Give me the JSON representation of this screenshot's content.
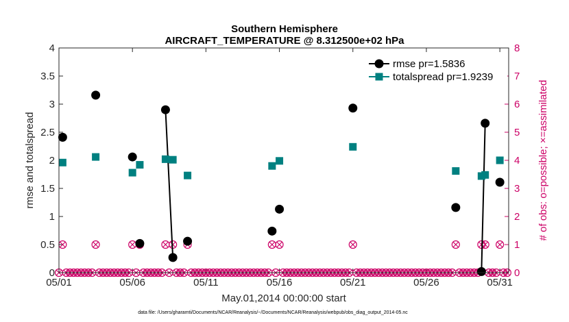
{
  "chart_data": {
    "type": "scatter",
    "title_line1": "Southern Hemisphere",
    "title_line2": "AIRCRAFT_TEMPERATURE @ 8.312500e+02 hPa",
    "xlabel": "May.01,2014 00:00:00 start",
    "ylabel_left": "rmse and totalspread",
    "ylabel_right": "# of obs: o=possible; ×=assimilated",
    "footer": "data file: /Users/gharamti/Documents/NCAR/Reanalysis/~/Documents/NCAR/Reanalysis/webpub/obs_diag_output_2014-05.nc",
    "xlim": [
      1,
      31.6
    ],
    "ylim_left": [
      0,
      4
    ],
    "ylim_right": [
      0,
      8
    ],
    "x_ticks": [
      1,
      6,
      11,
      16,
      21,
      26,
      31
    ],
    "x_tick_labels": [
      "05/01",
      "05/06",
      "05/11",
      "05/16",
      "05/21",
      "05/26",
      "05/31"
    ],
    "y_left_ticks": [
      0,
      0.5,
      1,
      1.5,
      2,
      2.5,
      3,
      3.5,
      4
    ],
    "y_left_tick_labels": [
      "0",
      "0.5",
      "1",
      "1.5",
      "2",
      "2.5",
      "3",
      "3.5",
      "4"
    ],
    "y_right_ticks": [
      0,
      1,
      2,
      3,
      4,
      5,
      6,
      7,
      8
    ],
    "y_right_tick_labels": [
      "0",
      "1",
      "2",
      "3",
      "4",
      "5",
      "6",
      "7",
      "8"
    ],
    "legend_position": "top-right",
    "colors": {
      "rmse": "#000000",
      "totalspread": "#008080",
      "obs": "#cc0066"
    },
    "series": [
      {
        "name": "rmse pr=1.5836",
        "marker": "circle",
        "x": [
          1.25,
          3.5,
          6.0,
          6.5,
          8.25,
          8.75,
          9.75,
          15.5,
          16.0,
          21.0,
          28.0,
          29.75,
          30.0,
          31.0
        ],
        "y": [
          2.41,
          3.16,
          2.06,
          0.52,
          2.9,
          0.27,
          0.56,
          0.74,
          1.13,
          2.93,
          1.16,
          0.02,
          2.66,
          1.61
        ],
        "connected_segments": [
          [
            8.25,
            2.9,
            8.75,
            0.27
          ],
          [
            29.75,
            0.02,
            30.0,
            2.66
          ]
        ]
      },
      {
        "name": "totalspread pr=1.9239",
        "marker": "square",
        "x": [
          1.25,
          3.5,
          6.0,
          6.5,
          8.25,
          8.75,
          9.75,
          15.5,
          16.0,
          21.0,
          28.0,
          29.75,
          30.0,
          31.0
        ],
        "y": [
          1.96,
          2.06,
          1.78,
          1.92,
          2.02,
          2.01,
          1.73,
          1.9,
          1.99,
          2.24,
          1.81,
          1.72,
          1.74,
          2.0
        ],
        "connected_segments": [
          [
            8.25,
            2.02,
            8.75,
            2.01
          ],
          [
            29.75,
            1.72,
            30.0,
            1.74
          ]
        ]
      },
      {
        "name": "obs possible/assimilated",
        "axis": "right",
        "x_start": 1,
        "x_step": 0.25,
        "count": 123,
        "nonzero_x": [
          1.25,
          3.5,
          6.0,
          6.5,
          8.25,
          8.75,
          9.75,
          15.5,
          16.0,
          21.0,
          28.0,
          29.75,
          30.0,
          31.0
        ],
        "nonzero_y": 1
      }
    ]
  }
}
